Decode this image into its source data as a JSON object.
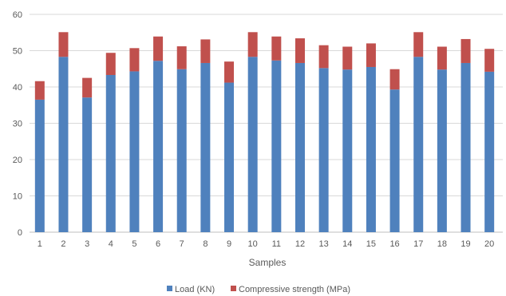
{
  "chart_data": {
    "type": "bar",
    "stacked": true,
    "categories": [
      "1",
      "2",
      "3",
      "4",
      "5",
      "6",
      "7",
      "8",
      "9",
      "10",
      "11",
      "12",
      "13",
      "14",
      "15",
      "16",
      "17",
      "18",
      "19",
      "20"
    ],
    "series": [
      {
        "name": "Load (KN)",
        "color": "#4f81bd",
        "values": [
          36.5,
          48.3,
          37.1,
          43.3,
          44.3,
          47.2,
          44.9,
          46.6,
          41.2,
          48.3,
          47.3,
          46.6,
          45.2,
          44.8,
          45.5,
          39.3,
          48.3,
          44.8,
          46.6,
          44.2
        ]
      },
      {
        "name": "Compressive strength (MPa)",
        "color": "#c0504d",
        "values": [
          5.1,
          6.8,
          5.4,
          6.1,
          6.4,
          6.7,
          6.3,
          6.5,
          5.8,
          6.8,
          6.6,
          6.8,
          6.3,
          6.3,
          6.5,
          5.6,
          6.8,
          6.3,
          6.6,
          6.3
        ]
      }
    ],
    "title": "",
    "xlabel": "Samples",
    "ylabel": "",
    "ylim": [
      0,
      60
    ],
    "yticks": [
      0,
      10,
      20,
      30,
      40,
      50,
      60
    ],
    "grid": true,
    "legend_position": "bottom"
  }
}
